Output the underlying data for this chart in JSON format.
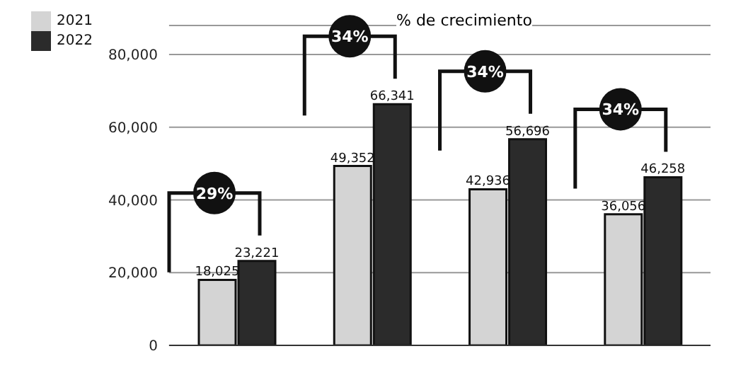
{
  "chart_data": {
    "type": "bar",
    "categories": [
      null,
      null,
      null,
      null
    ],
    "series": [
      {
        "name": "2021",
        "color": "#d4d4d4",
        "values": [
          18025,
          49352,
          42936,
          36056
        ],
        "value_labels": [
          "18,025",
          "49,352",
          "42,936",
          "36,056"
        ]
      },
      {
        "name": "2022",
        "color": "#2b2b2b",
        "values": [
          23221,
          66341,
          56696,
          46258
        ],
        "value_labels": [
          "23,221",
          "66,341",
          "56,696",
          "46,258"
        ]
      }
    ],
    "ylim": [
      0,
      88000
    ],
    "yticks": [
      0,
      {
        "value": 20000,
        "label": "20,000"
      },
      {
        "value": 40000,
        "label": "40,000"
      },
      {
        "value": 60000,
        "label": "60,000"
      },
      {
        "value": 80000,
        "label": "80,000"
      }
    ],
    "grid": "y",
    "legend": "top left",
    "annotations": [
      "29%",
      "34%",
      "34%",
      "34%",
      "% de crecimiento"
    ]
  }
}
